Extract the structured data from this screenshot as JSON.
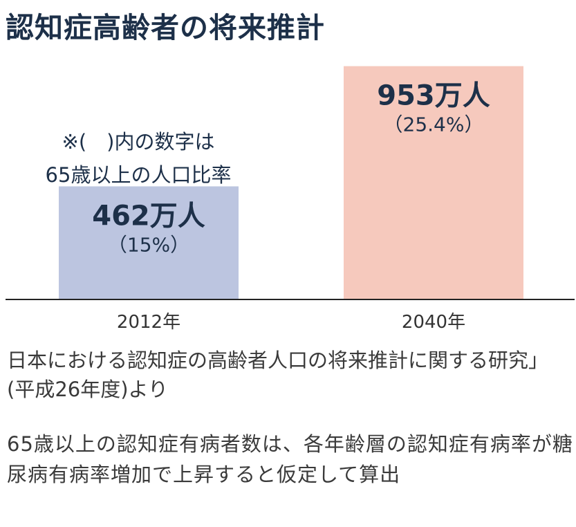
{
  "title": "認知症高齢者の将来推計",
  "note_line1": "※(　)内の数字は",
  "note_line2": "65歳以上の人口比率",
  "source": "日本における認知症の高齢者人口の将来推計に関する研究」(平成26年度)より",
  "method_note": "65歳以上の認知症有病者数は、各年齢層の認知症有病率が糖尿病有病率増加で上昇すると仮定して算出",
  "chart_data": {
    "type": "bar",
    "categories": [
      "2012年",
      "2040年"
    ],
    "values": [
      462,
      953
    ],
    "value_labels": [
      "462万人",
      "953万人"
    ],
    "share_labels": [
      "（15%）",
      "（25.4%）"
    ],
    "unit": "万人",
    "colors": [
      "#bcc5e0",
      "#f6c9bd"
    ],
    "ylim": [
      0,
      1000
    ],
    "grid": false,
    "title": "認知症高齢者の将来推計"
  }
}
